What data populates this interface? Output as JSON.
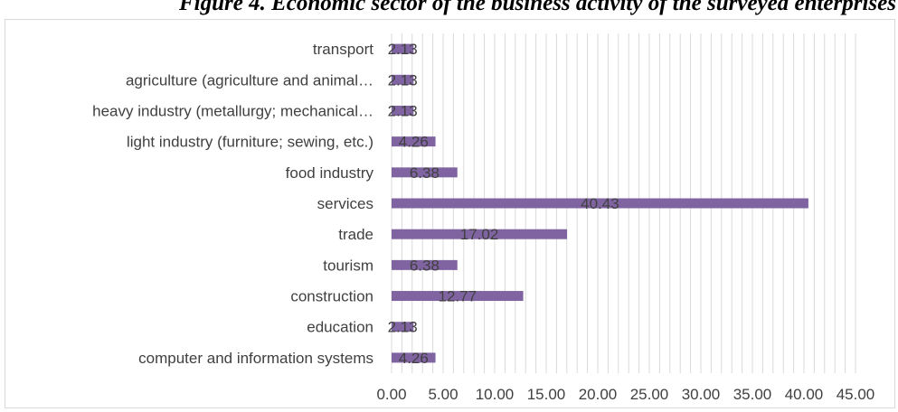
{
  "chart_data": {
    "type": "bar",
    "orientation": "horizontal",
    "title": "Figure 4. Economic sector of the business activity of the surveyed enterprises",
    "categories": [
      "computer and information systems",
      "education",
      "construction",
      "tourism",
      "trade",
      "services",
      "food industry",
      "light industry (furniture; sewing, etc.)",
      "heavy industry (metallurgy; mechanical…",
      "agriculture (agriculture and animal…",
      "transport"
    ],
    "values": [
      4.26,
      2.13,
      12.77,
      6.38,
      17.02,
      40.43,
      6.38,
      4.26,
      2.13,
      2.13,
      2.13
    ],
    "data_labels": [
      "4.26",
      "2.13",
      "12.77",
      "6.38",
      "17.02",
      "40.43",
      "6.38",
      "4.26",
      "2.13",
      "2.13",
      "2.13"
    ],
    "x_ticks": [
      "0.00",
      "5.00",
      "10.00",
      "15.00",
      "20.00",
      "25.00",
      "30.00",
      "35.00",
      "40.00",
      "45.00"
    ],
    "xlim": [
      0,
      45
    ],
    "major_step": 5,
    "minor_step": 1,
    "grid": true,
    "bar_color": "#8064a2",
    "grid_color": "#d9d9d9"
  }
}
